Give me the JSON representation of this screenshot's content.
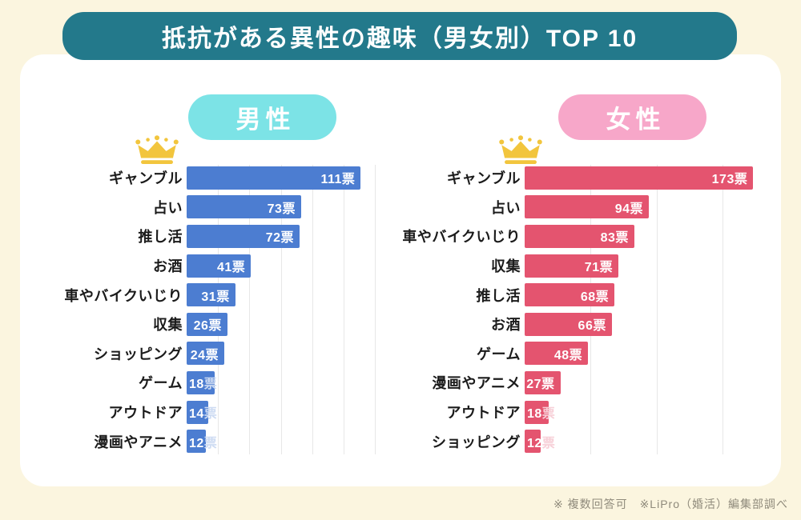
{
  "page": {
    "title": "抵抗がある異性の趣味（男女別）TOP 10",
    "footnote": "※ 複数回答可　※LiPro（婚活）編集部調べ",
    "background_color": "#FBF5DF",
    "card_color": "#FFFFFF",
    "title_bar_color": "#23798B",
    "crown_color": "#F2C53D"
  },
  "chart_data": [
    {
      "type": "bar",
      "orientation": "horizontal",
      "group_label": "男性",
      "badge_color": "#7CE3E6",
      "bar_color": "#4C7DD1",
      "unit": "票",
      "categories": [
        "ギャンブル",
        "占い",
        "推し活",
        "お酒",
        "車やバイクいじり",
        "収集",
        "ショッピング",
        "ゲーム",
        "アウトドア",
        "漫画やアニメ"
      ],
      "values": [
        111,
        73,
        72,
        41,
        31,
        26,
        24,
        18,
        14,
        12
      ],
      "value_labels": [
        "111票",
        "73票",
        "72票",
        "41票",
        "31票",
        "26票",
        "24票",
        "18票",
        "14票",
        "12票"
      ],
      "axis": {
        "min": 0,
        "max": 121,
        "gridline_values": [
          20,
          40,
          60,
          80,
          100,
          120
        ],
        "grid_visible": true
      },
      "legend_position": "none"
    },
    {
      "type": "bar",
      "orientation": "horizontal",
      "group_label": "女性",
      "badge_color": "#F7A7C9",
      "bar_color": "#E4546F",
      "unit": "票",
      "categories": [
        "ギャンブル",
        "占い",
        "車やバイクいじり",
        "収集",
        "推し活",
        "お酒",
        "ゲーム",
        "漫画やアニメ",
        "アウトドア",
        "ショッピング"
      ],
      "values": [
        173,
        94,
        83,
        71,
        68,
        66,
        48,
        27,
        18,
        12
      ],
      "value_labels": [
        "173票",
        "94票",
        "83票",
        "71票",
        "68票",
        "66票",
        "48票",
        "27票",
        "18票",
        "12票"
      ],
      "axis": {
        "min": 0,
        "max": 194,
        "gridline_values": [
          50,
          100,
          150
        ],
        "grid_visible": true
      },
      "legend_position": "none"
    }
  ]
}
